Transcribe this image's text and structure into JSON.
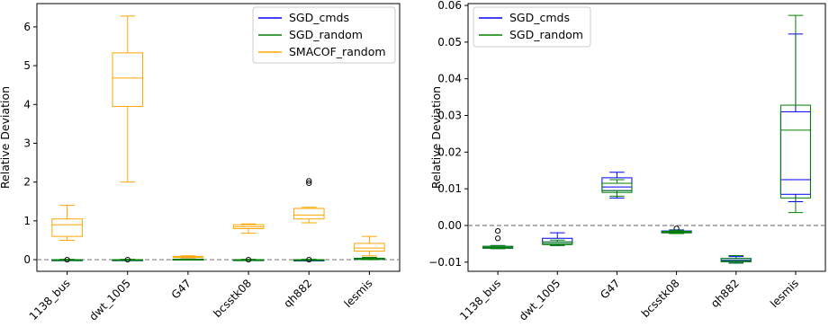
{
  "chart_data": [
    {
      "type": "box",
      "ylabel": "Relative Deviation",
      "categories": [
        "1138_bus",
        "dwt_1005",
        "G47",
        "bcsstk08",
        "qh882",
        "lesmis"
      ],
      "ylim": [
        -0.3,
        6.6
      ],
      "yticks": [
        0,
        1,
        2,
        3,
        4,
        5,
        6
      ],
      "reference_line": 0,
      "legend_position": "top-right",
      "series": [
        {
          "name": "SGD_cmds",
          "color": "#0000ff",
          "boxes": [
            {
              "whislo": -0.01,
              "q1": -0.006,
              "med": -0.005,
              "q3": -0.004,
              "whishi": -0.002,
              "fliers": []
            },
            {
              "whislo": -0.006,
              "q1": -0.005,
              "med": -0.004,
              "q3": -0.004,
              "whishi": -0.002,
              "fliers": []
            },
            {
              "whislo": 0.008,
              "q1": 0.009,
              "med": 0.01,
              "q3": 0.013,
              "whishi": 0.015,
              "fliers": []
            },
            {
              "whislo": -0.003,
              "q1": -0.002,
              "med": -0.002,
              "q3": -0.001,
              "whishi": -0.001,
              "fliers": []
            },
            {
              "whislo": -0.01,
              "q1": -0.01,
              "med": -0.009,
              "q3": -0.009,
              "whishi": -0.008,
              "fliers": []
            },
            {
              "whislo": 0.006,
              "q1": 0.008,
              "med": 0.012,
              "q3": 0.031,
              "whishi": 0.052,
              "fliers": []
            }
          ]
        },
        {
          "name": "SGD_random",
          "color": "#008000",
          "boxes": [
            {
              "whislo": -0.02,
              "q1": -0.01,
              "med": -0.005,
              "q3": 0.0,
              "whishi": 0.01,
              "fliers": [
                0.0
              ]
            },
            {
              "whislo": -0.02,
              "q1": -0.01,
              "med": -0.005,
              "q3": 0.0,
              "whishi": 0.01,
              "fliers": [
                0.0
              ]
            },
            {
              "whislo": 0.008,
              "q1": 0.009,
              "med": 0.01,
              "q3": 0.012,
              "whishi": 0.014,
              "fliers": []
            },
            {
              "whislo": -0.02,
              "q1": -0.01,
              "med": -0.005,
              "q3": 0.0,
              "whishi": 0.01,
              "fliers": [
                0.0
              ]
            },
            {
              "whislo": -0.02,
              "q1": -0.01,
              "med": -0.005,
              "q3": 0.0,
              "whishi": 0.01,
              "fliers": [
                0.0
              ]
            },
            {
              "whislo": 0.0,
              "q1": 0.01,
              "med": 0.02,
              "q3": 0.035,
              "whishi": 0.06,
              "fliers": []
            }
          ]
        },
        {
          "name": "SMACOF_random",
          "color": "#ffa500",
          "boxes": [
            {
              "whislo": 0.5,
              "q1": 0.6,
              "med": 0.9,
              "q3": 1.05,
              "whishi": 1.4,
              "fliers": []
            },
            {
              "whislo": 2.0,
              "q1": 3.95,
              "med": 4.68,
              "q3": 5.33,
              "whishi": 6.28,
              "fliers": []
            },
            {
              "whislo": 0.05,
              "q1": 0.06,
              "med": 0.07,
              "q3": 0.08,
              "whishi": 0.1,
              "fliers": []
            },
            {
              "whislo": 0.68,
              "q1": 0.8,
              "med": 0.85,
              "q3": 0.9,
              "whishi": 0.92,
              "fliers": []
            },
            {
              "whislo": 0.95,
              "q1": 1.05,
              "med": 1.15,
              "q3": 1.32,
              "whishi": 1.35,
              "fliers": [
                1.97,
                2.03
              ]
            },
            {
              "whislo": 0.1,
              "q1": 0.22,
              "med": 0.3,
              "q3": 0.42,
              "whishi": 0.6,
              "fliers": []
            }
          ]
        }
      ]
    },
    {
      "type": "box",
      "ylabel": "Relative Deviation",
      "categories": [
        "1138_bus",
        "dwt_1005",
        "G47",
        "bcsstk08",
        "qh882",
        "lesmis"
      ],
      "ylim": [
        -0.0125,
        0.0605
      ],
      "yticks": [
        -0.01,
        0.0,
        0.01,
        0.02,
        0.03,
        0.04,
        0.05,
        0.06
      ],
      "ytick_labels": [
        "−0.01",
        "0.00",
        "0.01",
        "0.02",
        "0.03",
        "0.04",
        "0.05",
        "0.06"
      ],
      "reference_line": 0,
      "legend_position": "top-left",
      "series": [
        {
          "name": "SGD_cmds",
          "color": "#0000ff",
          "boxes": [
            {
              "whislo": -0.0063,
              "q1": -0.0062,
              "med": -0.006,
              "q3": -0.0057,
              "whishi": -0.0055,
              "fliers": [
                -0.0035,
                -0.0015
              ]
            },
            {
              "whislo": -0.0055,
              "q1": -0.005,
              "med": -0.0045,
              "q3": -0.0035,
              "whishi": -0.002,
              "fliers": []
            },
            {
              "whislo": 0.0075,
              "q1": 0.0095,
              "med": 0.0105,
              "q3": 0.013,
              "whishi": 0.0145,
              "fliers": []
            },
            {
              "whislo": -0.0022,
              "q1": -0.002,
              "med": -0.0018,
              "q3": -0.0015,
              "whishi": -0.0012,
              "fliers": [
                -0.0008
              ]
            },
            {
              "whislo": -0.0102,
              "q1": -0.0098,
              "med": -0.0095,
              "q3": -0.009,
              "whishi": -0.0085,
              "fliers": []
            },
            {
              "whislo": 0.0065,
              "q1": 0.0085,
              "med": 0.0125,
              "q3": 0.031,
              "whishi": 0.0522,
              "fliers": []
            }
          ]
        },
        {
          "name": "SGD_random",
          "color": "#008000",
          "boxes": [
            {
              "whislo": -0.0063,
              "q1": -0.0062,
              "med": -0.006,
              "q3": -0.0057,
              "whishi": -0.0055,
              "fliers": []
            },
            {
              "whislo": -0.0055,
              "q1": -0.0052,
              "med": -0.005,
              "q3": -0.0045,
              "whishi": -0.004,
              "fliers": []
            },
            {
              "whislo": 0.008,
              "q1": 0.009,
              "med": 0.0095,
              "q3": 0.0115,
              "whishi": 0.0125,
              "fliers": []
            },
            {
              "whislo": -0.0022,
              "q1": -0.002,
              "med": -0.0018,
              "q3": -0.0016,
              "whishi": -0.0013,
              "fliers": []
            },
            {
              "whislo": -0.0103,
              "q1": -0.0099,
              "med": -0.0096,
              "q3": -0.009,
              "whishi": -0.0082,
              "fliers": []
            },
            {
              "whislo": 0.0035,
              "q1": 0.0075,
              "med": 0.026,
              "q3": 0.0328,
              "whishi": 0.0573,
              "fliers": []
            }
          ]
        }
      ]
    }
  ]
}
